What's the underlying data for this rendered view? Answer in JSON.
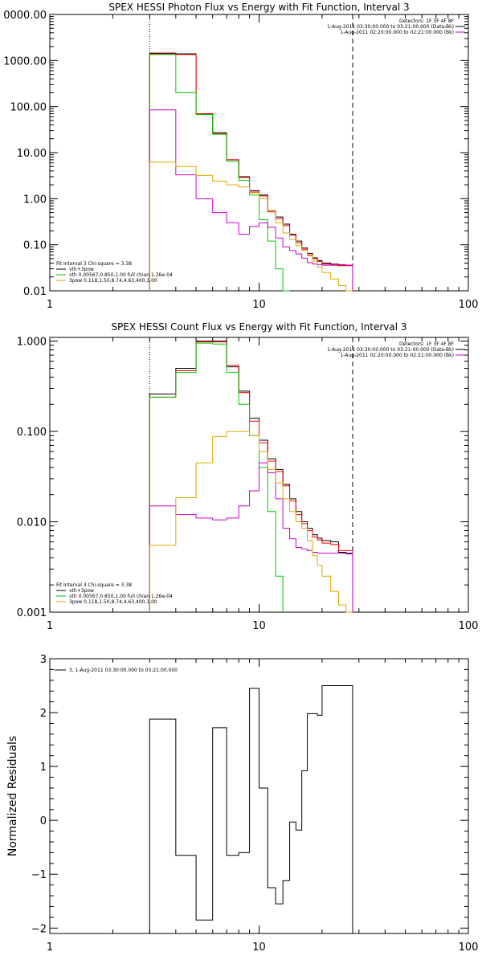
{
  "chart_data": [
    {
      "type": "line",
      "title": "SPEX HESSI Photon Flux vs Energy with Fit Function, Interval 3",
      "xlabel": "",
      "ylabel": "",
      "x_scale": "log",
      "y_scale": "log",
      "xlim": [
        1,
        100
      ],
      "ylim": [
        0.01,
        10000
      ],
      "x_ticks": [
        "1",
        "10",
        "100"
      ],
      "y_ticks": [
        "0.01",
        "0.10",
        "1.00",
        "10.00",
        "100.00",
        "1000.00",
        "0000.00"
      ],
      "markers": {
        "dotted_x": 3,
        "dashed_x": 28
      },
      "legend_top": {
        "line1": "Detectors: 1F 3F 4F 8F",
        "line2": "1-Aug-2011 03:30:00.000 to 03:21:00.000 (Data-Bk)",
        "line3": "1-Aug-2011 02:20:00.000 to 02:21:00.000 (Bk)"
      },
      "legend_bottom": {
        "title": "Fit Interval 3   Chi-square = 3.38",
        "items": [
          "vth+3pow",
          "vth 0.00567,0.850,1.00  full chian 1.26e-04",
          "3pow 0.118,1.50,8.74,4.63,400,1.00"
        ]
      },
      "edges": [
        3,
        4,
        5,
        6,
        7,
        8,
        9,
        10,
        11,
        12,
        13,
        14,
        15,
        16,
        17,
        18,
        19,
        20,
        22,
        24,
        26,
        28
      ],
      "series": [
        {
          "color": "#000000",
          "values": [
            1450,
            1400,
            68,
            27,
            7,
            3,
            1.5,
            1.2,
            0.55,
            0.4,
            0.28,
            0.17,
            0.12,
            0.085,
            0.065,
            0.052,
            0.045,
            0.04,
            0.038,
            0.036,
            0.036
          ]
        },
        {
          "color": "#ff0000",
          "values": [
            1400,
            1350,
            70,
            26,
            7,
            2.9,
            1.4,
            1.15,
            0.52,
            0.37,
            0.26,
            0.16,
            0.11,
            0.08,
            0.06,
            0.05,
            0.043,
            0.038,
            0.036,
            0.035,
            0.035
          ]
        },
        {
          "color": "#00cc00",
          "values": [
            1350,
            200,
            67,
            25,
            6.5,
            2.5,
            1.2,
            0.35,
            0.12,
            0.03,
            0.01
          ]
        },
        {
          "color": "#cc00cc",
          "values": [
            85,
            3.3,
            1.0,
            0.5,
            0.3,
            0.17,
            0.25,
            0.3,
            0.24,
            0.14,
            0.09,
            0.075,
            0.063,
            0.051,
            0.041,
            0.038,
            0.037,
            0.036,
            0.037,
            0.037,
            0.036
          ]
        },
        {
          "color": "#ddaa00",
          "values": [
            6.2,
            5.0,
            3.2,
            2.4,
            2.0,
            1.8,
            1.35,
            1.0,
            0.55,
            0.3,
            0.18,
            0.13,
            0.095,
            0.075,
            0.058,
            0.044,
            0.033,
            0.025,
            0.018,
            0.013,
            0.01
          ]
        }
      ]
    },
    {
      "type": "line",
      "title": "SPEX HESSI Count Flux vs Energy with Fit Function, Interval 3",
      "xlabel": "",
      "ylabel": "",
      "x_scale": "log",
      "y_scale": "log",
      "xlim": [
        1,
        100
      ],
      "ylim": [
        0.001,
        1.1
      ],
      "x_ticks": [
        "1",
        "10",
        "100"
      ],
      "y_ticks": [
        "0.001",
        "0.010",
        "0.100",
        "1.000"
      ],
      "markers": {
        "dotted_x": 3,
        "dashed_x": 28
      },
      "legend_top": {
        "line1": "Detectors: 1F 3F 4F 8F",
        "line2": "1-Aug-2011 03:30:00.000 to 03:21:00.000 (Data-Bk)",
        "line3": "1-Aug-2011 02:20:00.000 to 02:21:00.000 (Bk)"
      },
      "legend_bottom": {
        "title": "Fit Interval 3   Chi-square = 3.38",
        "items": [
          "vth+3pow",
          "vth 0.00567,0.850,1.00  full chian 1.26e-04",
          "3pow 0.118,1.50,8.74,4.63,400,1.00"
        ]
      },
      "edges": [
        3,
        4,
        5,
        6,
        7,
        8,
        9,
        10,
        11,
        12,
        13,
        14,
        15,
        16,
        17,
        18,
        19,
        20,
        22,
        24,
        26,
        28
      ],
      "series": [
        {
          "color": "#000000",
          "values": [
            0.26,
            0.5,
            1.0,
            1.0,
            0.52,
            0.28,
            0.14,
            0.08,
            0.05,
            0.038,
            0.026,
            0.018,
            0.013,
            0.01,
            0.0085,
            0.0072,
            0.0066,
            0.0062,
            0.006,
            0.0046,
            0.0045
          ]
        },
        {
          "color": "#ff0000",
          "values": [
            0.24,
            0.47,
            0.98,
            0.98,
            0.54,
            0.27,
            0.13,
            0.075,
            0.047,
            0.036,
            0.025,
            0.017,
            0.012,
            0.0095,
            0.008,
            0.0068,
            0.0063,
            0.0058,
            0.0056,
            0.0048,
            0.0048
          ]
        },
        {
          "color": "#00cc00",
          "values": [
            0.24,
            0.45,
            0.95,
            0.93,
            0.45,
            0.2,
            0.09,
            0.04,
            0.013,
            0.0025
          ]
        },
        {
          "color": "#cc00cc",
          "values": [
            0.015,
            0.012,
            0.011,
            0.0105,
            0.011,
            0.015,
            0.022,
            0.045,
            0.035,
            0.018,
            0.0085,
            0.0065,
            0.0052,
            0.005,
            0.0048,
            0.0046,
            0.0045,
            0.0045,
            0.0045,
            0.0045,
            0.0044
          ]
        },
        {
          "color": "#ddaa00",
          "values": [
            0.0055,
            0.0185,
            0.045,
            0.088,
            0.1,
            0.1,
            0.09,
            0.06,
            0.038,
            0.027,
            0.018,
            0.013,
            0.01,
            0.0085,
            0.0062,
            0.0042,
            0.0033,
            0.0025,
            0.0017,
            0.0012,
            0.001
          ]
        }
      ]
    },
    {
      "type": "line",
      "title": "",
      "xlabel": "",
      "ylabel": "Normalized Residuals",
      "x_scale": "log",
      "y_scale": "linear",
      "xlim": [
        1,
        100
      ],
      "ylim": [
        -2.1,
        3
      ],
      "x_ticks": [
        "1",
        "10",
        "100"
      ],
      "y_ticks": [
        "−2",
        "−1",
        "0",
        "1",
        "2",
        "3"
      ],
      "legend_top": {
        "line1": "3, 1-Aug-2011 03:30:00.000 to 03:21:00.000"
      },
      "edges": [
        3,
        4,
        5,
        6,
        7,
        8,
        9,
        10,
        11,
        12,
        13,
        14,
        15,
        16,
        17,
        18,
        19,
        20,
        22,
        24,
        26,
        28
      ],
      "series": [
        {
          "color": "#000000",
          "values": [
            1.88,
            -0.65,
            -1.85,
            1.72,
            -0.65,
            -0.6,
            2.45,
            0.6,
            -1.25,
            -1.55,
            -1.12,
            -0.03,
            -0.18,
            0.92,
            1.98,
            1.98,
            1.95,
            2.5,
            2.5,
            2.5,
            2.5
          ]
        }
      ]
    }
  ]
}
